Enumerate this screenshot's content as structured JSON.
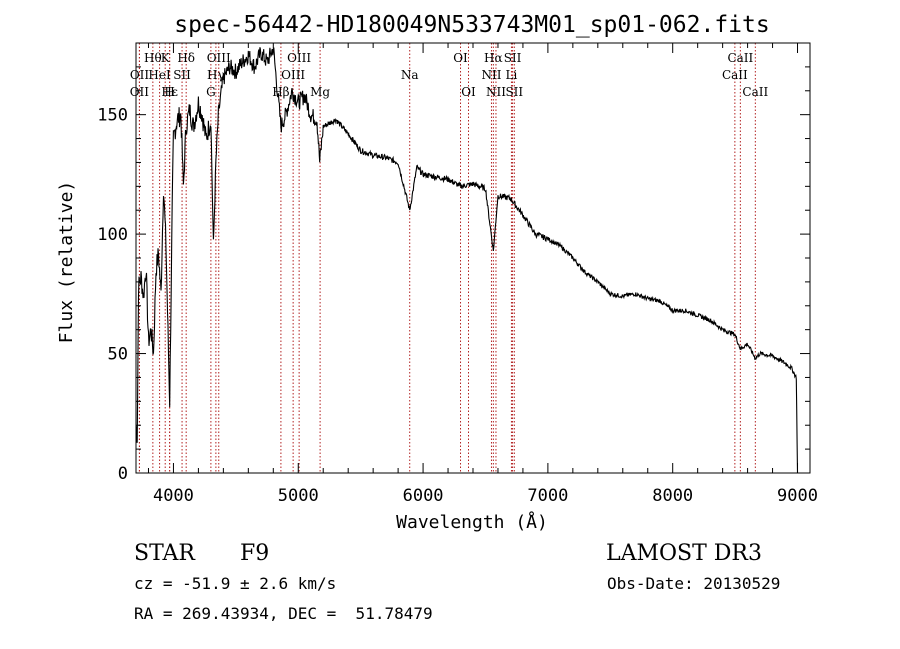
{
  "chart_data": {
    "type": "line",
    "title": "spec-56442-HD180049N533743M01_sp01-062.fits",
    "xlabel": "Wavelength (Å)",
    "ylabel": "Flux (relative)",
    "xlim": [
      3700,
      9100
    ],
    "ylim": [
      0,
      180
    ],
    "xticks": [
      4000,
      5000,
      6000,
      7000,
      8000,
      9000
    ],
    "yticks": [
      0,
      50,
      100,
      150
    ],
    "grid": false,
    "series": [
      {
        "color": "#000000",
        "x": [
          3700,
          3710,
          3720,
          3740,
          3760,
          3780,
          3800,
          3820,
          3840,
          3860,
          3880,
          3900,
          3920,
          3940,
          3960,
          3970,
          3990,
          4000,
          4030,
          4060,
          4080,
          4101,
          4130,
          4160,
          4200,
          4230,
          4260,
          4300,
          4320,
          4340,
          4360,
          4380,
          4400,
          4450,
          4500,
          4550,
          4600,
          4650,
          4700,
          4750,
          4800,
          4861,
          4900,
          4950,
          5000,
          5050,
          5100,
          5150,
          5172,
          5200,
          5300,
          5400,
          5500,
          5600,
          5700,
          5800,
          5893,
          5950,
          6000,
          6100,
          6200,
          6300,
          6400,
          6500,
          6563,
          6600,
          6700,
          6800,
          6900,
          7000,
          7100,
          7200,
          7300,
          7400,
          7500,
          7600,
          7700,
          7800,
          7900,
          8000,
          8100,
          8200,
          8300,
          8400,
          8498,
          8542,
          8600,
          8662,
          8700,
          8800,
          8900,
          8950,
          8990,
          9000
        ],
        "values": [
          20,
          15,
          78,
          82,
          74,
          86,
          55,
          60,
          50,
          85,
          92,
          75,
          120,
          95,
          50,
          30,
          110,
          140,
          148,
          150,
          120,
          145,
          152,
          145,
          155,
          150,
          140,
          148,
          95,
          130,
          150,
          158,
          165,
          170,
          168,
          172,
          175,
          170,
          176,
          172,
          178,
          145,
          150,
          160,
          155,
          158,
          150,
          148,
          130,
          145,
          148,
          142,
          135,
          133,
          132,
          130,
          110,
          128,
          125,
          124,
          123,
          120,
          121,
          119,
          93,
          116,
          115,
          108,
          100,
          98,
          95,
          90,
          84,
          80,
          75,
          74,
          75,
          73,
          72,
          68,
          68,
          66,
          64,
          60,
          58,
          52,
          54,
          48,
          50,
          49,
          46,
          44,
          40,
          0
        ]
      }
    ],
    "line_markers": [
      {
        "wl": 3835,
        "tier": 1,
        "label": "Hθ"
      },
      {
        "wl": 3728,
        "tier": 2,
        "label": "OII"
      },
      {
        "wl": 3727,
        "tier": 3,
        "label": "OII"
      },
      {
        "wl": 3889,
        "tier": 2,
        "label": "HeI"
      },
      {
        "wl": 3934,
        "tier": 1,
        "label": "K"
      },
      {
        "wl": 3970,
        "tier": 3,
        "label": "Hε"
      },
      {
        "wl": 3969,
        "tier": 3,
        "label": "H"
      },
      {
        "wl": 4069,
        "tier": 2,
        "label": "SII"
      },
      {
        "wl": 4102,
        "tier": 1,
        "label": "Hδ"
      },
      {
        "wl": 4300,
        "tier": 3,
        "label": "G"
      },
      {
        "wl": 4340,
        "tier": 2,
        "label": "Hγ"
      },
      {
        "wl": 4363,
        "tier": 1,
        "label": "OIII"
      },
      {
        "wl": 4861,
        "tier": 3,
        "label": "Hβ"
      },
      {
        "wl": 4959,
        "tier": 2,
        "label": "OIII"
      },
      {
        "wl": 5007,
        "tier": 1,
        "label": "OIII"
      },
      {
        "wl": 5175,
        "tier": 3,
        "label": "Mg"
      },
      {
        "wl": 5893,
        "tier": 2,
        "label": "Na"
      },
      {
        "wl": 6300,
        "tier": 1,
        "label": "OI"
      },
      {
        "wl": 6364,
        "tier": 3,
        "label": "OI"
      },
      {
        "wl": 6548,
        "tier": 2,
        "label": "NII"
      },
      {
        "wl": 6563,
        "tier": 1,
        "label": "Hα"
      },
      {
        "wl": 6584,
        "tier": 3,
        "label": "NII"
      },
      {
        "wl": 6708,
        "tier": 2,
        "label": "Li"
      },
      {
        "wl": 6717,
        "tier": 1,
        "label": "SII"
      },
      {
        "wl": 6731,
        "tier": 3,
        "label": "SII"
      },
      {
        "wl": 8498,
        "tier": 2,
        "label": "CaII"
      },
      {
        "wl": 8542,
        "tier": 1,
        "label": "CaII"
      },
      {
        "wl": 8662,
        "tier": 3,
        "label": "CaII"
      }
    ]
  },
  "info": {
    "object_class": "STAR",
    "subclass": "F9",
    "survey": "LAMOST DR3",
    "cz": "cz = -51.9 ± 2.6 km/s",
    "obs_date": "Obs-Date: 20130529",
    "coords": "RA = 269.43934, DEC =  51.78479"
  },
  "colors": {
    "line_marker": "#b22222",
    "spectrum": "#000000"
  }
}
